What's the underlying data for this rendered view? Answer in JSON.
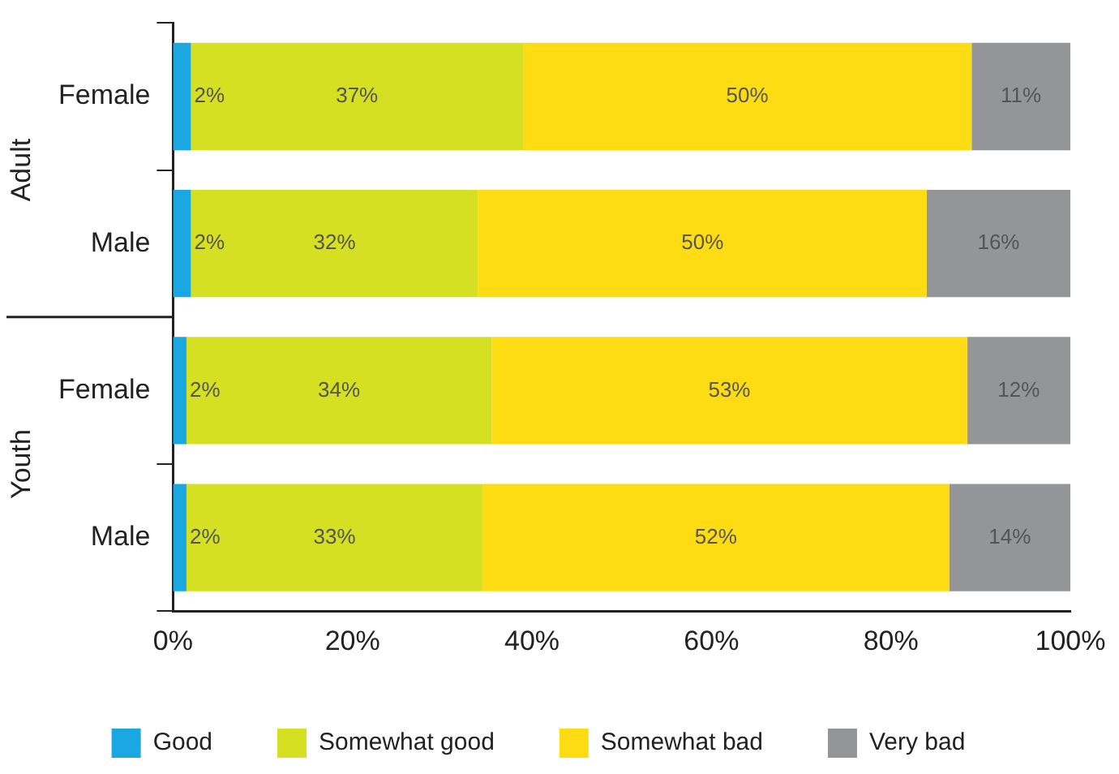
{
  "chart_data": {
    "type": "bar",
    "orientation": "horizontal",
    "stacked": true,
    "categories": [
      "Female",
      "Male",
      "Female",
      "Male"
    ],
    "annotations": [
      "Adult",
      "Youth"
    ],
    "series": [
      {
        "name": "Good",
        "color": "#1ba7e1",
        "values": [
          2,
          2,
          1.5,
          1.5
        ],
        "value_labels": [
          "2%",
          "2%",
          "2%",
          "2%"
        ]
      },
      {
        "name": "Somewhat good",
        "color": "#d5e022",
        "values": [
          37,
          32,
          34,
          33
        ],
        "value_labels": [
          "37%",
          "32%",
          "34%",
          "33%"
        ]
      },
      {
        "name": "Somewhat bad",
        "color": "#fddc14",
        "values": [
          50,
          50,
          53,
          52
        ],
        "value_labels": [
          "50%",
          "50%",
          "53%",
          "52%"
        ]
      },
      {
        "name": "Very bad",
        "color": "#939598",
        "values": [
          11,
          16,
          11.5,
          13.5
        ],
        "value_labels": [
          "11%",
          "16%",
          "12%",
          "14%"
        ]
      }
    ],
    "xlim": [
      0,
      100
    ],
    "xticks": [
      {
        "value": 0,
        "label": "0%"
      },
      {
        "value": 20,
        "label": "20%"
      },
      {
        "value": 40,
        "label": "40%"
      },
      {
        "value": 60,
        "label": "60%"
      },
      {
        "value": 80,
        "label": "80%"
      },
      {
        "value": 100,
        "label": "100%"
      }
    ],
    "grid": false,
    "legend": "bottom"
  }
}
